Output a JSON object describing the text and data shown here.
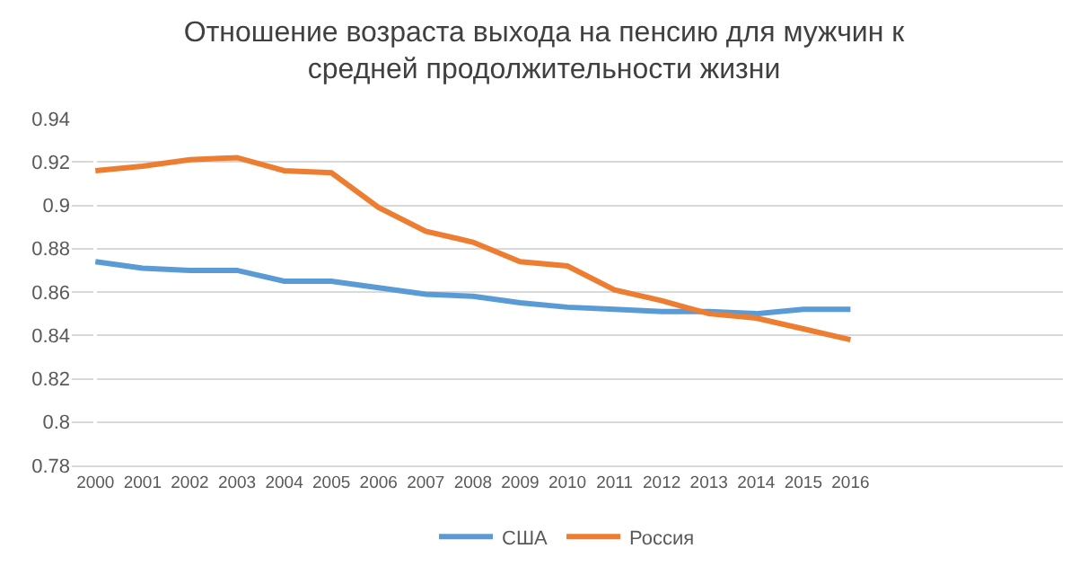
{
  "chart_data": {
    "type": "line",
    "title": "Отношение возраста выхода на пенсию для мужчин к средней продолжительности жизни",
    "categories": [
      "2000",
      "2001",
      "2002",
      "2003",
      "2004",
      "2005",
      "2006",
      "2007",
      "2008",
      "2009",
      "2010",
      "2011",
      "2012",
      "2013",
      "2014",
      "2015",
      "2016",
      null,
      null,
      null,
      null
    ],
    "series": [
      {
        "name": "США",
        "color": "#5b9bd5",
        "values": [
          0.874,
          0.871,
          0.87,
          0.87,
          0.865,
          0.865,
          0.862,
          0.859,
          0.858,
          0.855,
          0.853,
          0.852,
          0.851,
          0.851,
          0.85,
          0.852,
          0.852,
          null,
          null,
          null,
          null
        ]
      },
      {
        "name": "Россия",
        "color": "#ed7d31",
        "values": [
          0.916,
          0.918,
          0.921,
          0.922,
          0.916,
          0.915,
          0.899,
          0.888,
          0.883,
          0.874,
          0.872,
          0.861,
          0.856,
          0.85,
          0.848,
          0.843,
          0.838,
          null,
          null,
          null,
          null
        ]
      }
    ],
    "ylim": [
      0.78,
      0.94
    ],
    "yticks": [
      0.78,
      0.8,
      0.82,
      0.84,
      0.86,
      0.88,
      0.9,
      0.92,
      0.94
    ],
    "grid": "y",
    "legend": "bottom",
    "marker": "none",
    "line_style": "solid"
  }
}
